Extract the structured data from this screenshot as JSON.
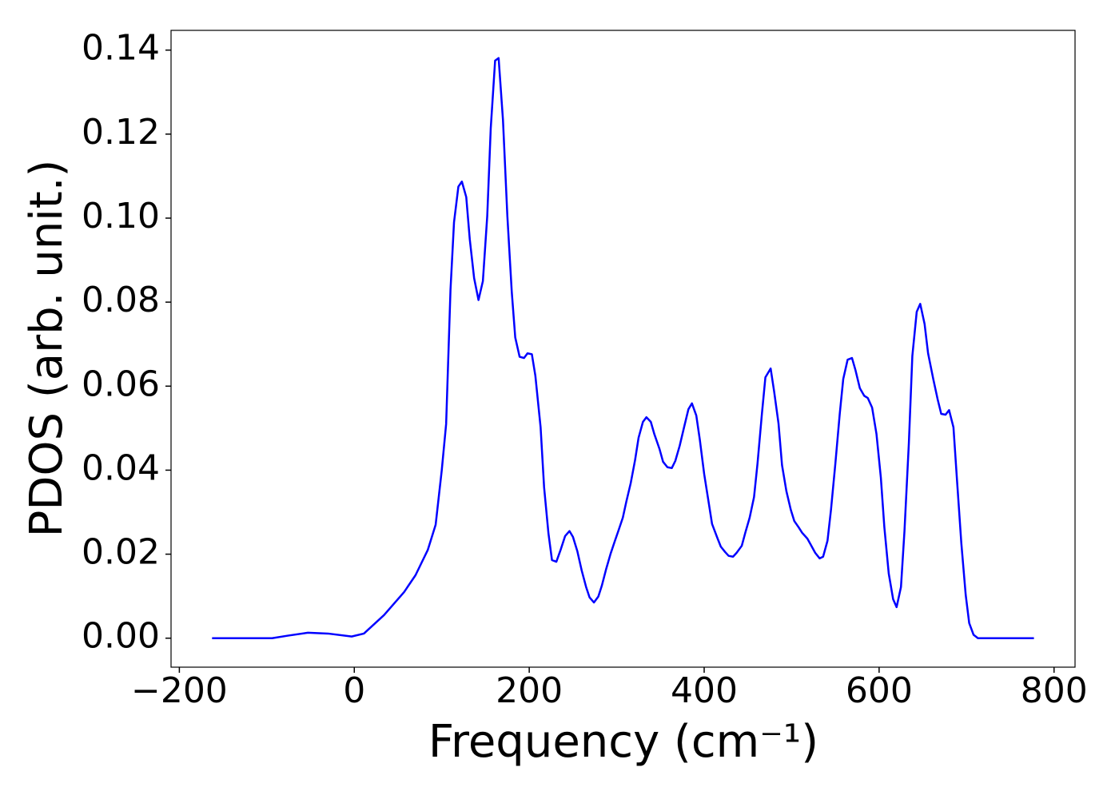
{
  "chart_data": {
    "type": "line",
    "x_label": "Frequency (cm⁻¹)",
    "y_label": "PDOS (arb. unit.)",
    "xlim": [
      -209.5,
      824
    ],
    "ylim": [
      -0.0069,
      0.1447
    ],
    "xticks": [
      {
        "value": -200,
        "label": "−200"
      },
      0,
      200,
      400,
      600,
      800
    ],
    "yticks": [
      {
        "value": 0,
        "label": "0.00"
      },
      {
        "value": 0.02,
        "label": "0.02"
      },
      {
        "value": 0.04,
        "label": "0.04"
      },
      {
        "value": 0.06,
        "label": "0.06"
      },
      {
        "value": 0.08,
        "label": "0.08"
      },
      {
        "value": 0.1,
        "label": "0.10"
      },
      {
        "value": 0.12,
        "label": "0.12"
      },
      {
        "value": 0.14,
        "label": "0.14"
      }
    ],
    "grid": false,
    "series": [
      {
        "color": "#0000ff",
        "x": [
          -162.6,
          -94,
          -76,
          -53,
          -30,
          -3,
          11,
          34,
          57,
          70,
          84,
          93,
          100,
          105,
          110,
          114,
          119,
          123,
          128,
          132,
          137,
          142,
          147,
          152,
          156,
          161,
          165,
          170,
          175,
          180,
          184,
          189,
          194,
          198,
          203,
          207,
          213,
          217,
          222,
          226,
          231,
          236,
          241,
          246,
          250,
          255,
          260,
          265,
          269,
          274,
          279,
          283,
          288,
          293,
          298,
          302,
          307,
          311,
          316,
          321,
          325,
          330,
          334,
          339,
          343,
          349,
          353,
          358,
          363,
          367,
          372,
          377,
          382,
          386,
          391,
          395,
          400,
          405,
          409,
          415,
          419,
          424,
          428,
          433,
          437,
          443,
          447,
          452,
          457,
          461,
          466,
          470,
          476,
          480,
          485,
          489,
          494,
          499,
          503,
          508,
          512,
          518,
          522,
          527,
          532,
          536,
          541,
          545,
          550,
          555,
          559,
          564,
          569,
          573,
          578,
          583,
          587,
          592,
          597,
          602,
          606,
          611,
          616,
          620,
          625,
          629,
          634,
          638,
          643,
          647,
          652,
          656,
          662,
          667,
          671,
          676,
          680,
          685,
          689,
          694,
          699,
          703,
          708,
          713,
          777
        ],
        "values": [
          0,
          0,
          0.0006,
          0.0013,
          0.0011,
          0.0004,
          0.0011,
          0.0055,
          0.011,
          0.015,
          0.021,
          0.027,
          0.04,
          0.051,
          0.083,
          0.099,
          0.1075,
          0.1087,
          0.105,
          0.095,
          0.0857,
          0.0805,
          0.085,
          0.1005,
          0.1214,
          0.1375,
          0.1381,
          0.1233,
          0.1005,
          0.0825,
          0.0716,
          0.067,
          0.0667,
          0.0678,
          0.0676,
          0.0625,
          0.0502,
          0.0359,
          0.0249,
          0.0186,
          0.0182,
          0.0211,
          0.0243,
          0.0255,
          0.0241,
          0.0207,
          0.0161,
          0.0122,
          0.0097,
          0.0085,
          0.0099,
          0.0125,
          0.0165,
          0.0201,
          0.0232,
          0.0256,
          0.0287,
          0.0325,
          0.0369,
          0.0424,
          0.0477,
          0.0515,
          0.0526,
          0.0515,
          0.0486,
          0.045,
          0.042,
          0.0407,
          0.0405,
          0.0422,
          0.0458,
          0.0502,
          0.0545,
          0.0559,
          0.053,
          0.0473,
          0.0391,
          0.0325,
          0.0272,
          0.0239,
          0.0218,
          0.0205,
          0.0196,
          0.0194,
          0.0203,
          0.022,
          0.0251,
          0.0287,
          0.0336,
          0.0416,
          0.0534,
          0.0621,
          0.0642,
          0.0587,
          0.0511,
          0.0412,
          0.035,
          0.0306,
          0.0279,
          0.0264,
          0.0251,
          0.0237,
          0.0222,
          0.0203,
          0.019,
          0.0194,
          0.0232,
          0.0306,
          0.0416,
          0.0534,
          0.0617,
          0.0663,
          0.0667,
          0.0638,
          0.0595,
          0.0577,
          0.0572,
          0.0549,
          0.0486,
          0.0382,
          0.0264,
          0.0154,
          0.0093,
          0.0074,
          0.0122,
          0.0255,
          0.0464,
          0.0672,
          0.0777,
          0.0796,
          0.0748,
          0.0678,
          0.0616,
          0.0568,
          0.0534,
          0.0532,
          0.0543,
          0.0502,
          0.0378,
          0.0226,
          0.0103,
          0.0036,
          0.0008,
          0,
          0
        ]
      }
    ]
  }
}
